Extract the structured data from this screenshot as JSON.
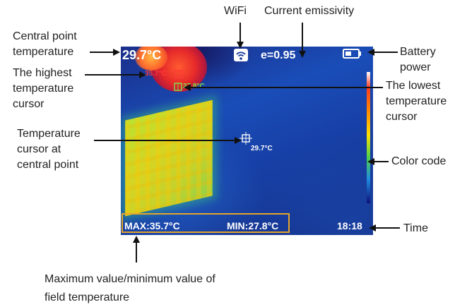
{
  "labels": {
    "central_point_temperature": [
      "Central point",
      "temperature"
    ],
    "highest_cursor": [
      "The highest",
      "temperature",
      "cursor"
    ],
    "lowest_cursor": [
      "The lowest",
      "temperature",
      "cursor"
    ],
    "center_cursor": [
      "Temperature",
      "cursor at",
      "central point"
    ],
    "field_max_min": [
      "Maximum value/minimum value of",
      "field temperature"
    ],
    "wifi": "WiFi",
    "emissivity": "Current emissivity",
    "battery": [
      "Battery",
      "power"
    ],
    "color_code": "Color code",
    "time": "Time"
  },
  "screen": {
    "center_temp": "29.7°C",
    "emissivity": "e=0.95",
    "high_cursor_temp": "35.7°C",
    "low_cursor_temp": "27.8°C",
    "center_cursor_temp": "29.7°C",
    "max": "MAX:35.7°C",
    "min": "MIN:27.8°C",
    "time": "18:18"
  },
  "colors": {
    "screen_text": "#ffffff",
    "high_cursor": "#ff3a3a",
    "low_cursor": "#7fe04a",
    "bracket": "#e4a52b"
  }
}
